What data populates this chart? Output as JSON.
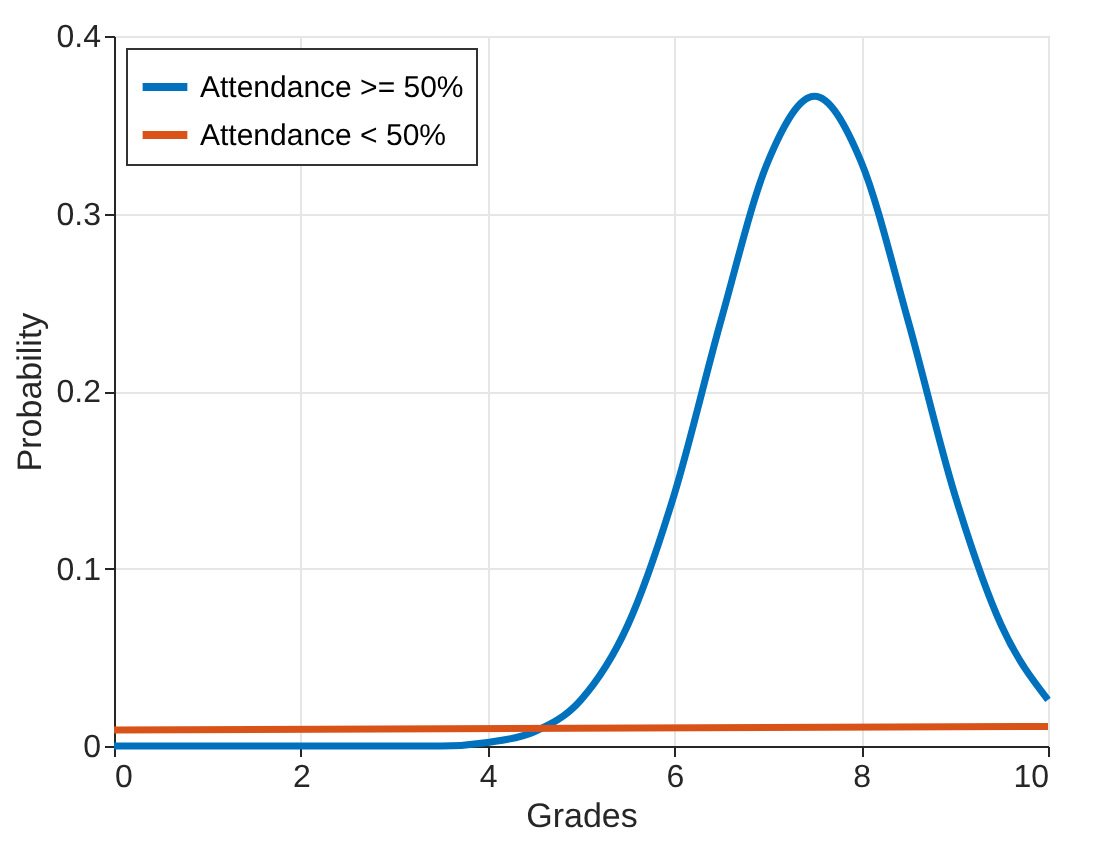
{
  "chart_data": {
    "type": "line",
    "xlabel": "Grades",
    "ylabel": "Probability",
    "xlim": [
      0,
      10
    ],
    "xticks": [
      0,
      2,
      4,
      6,
      8,
      10
    ],
    "ylim": [
      0,
      0.4
    ],
    "yticks": [
      0,
      0.1,
      0.2,
      0.3,
      0.4
    ],
    "grid": true,
    "legend": "top left",
    "line_style": "solid",
    "series": [
      {
        "name": "Attendance >= 50%",
        "color": "#0072bd",
        "x": [
          0,
          1,
          2,
          3,
          3.5,
          4,
          4.5,
          5,
          5.5,
          6,
          6.5,
          7,
          7.5,
          8,
          8.5,
          9,
          9.5,
          10
        ],
        "values": [
          0,
          0,
          0,
          0,
          0,
          0.002,
          0.008,
          0.026,
          0.068,
          0.142,
          0.24,
          0.329,
          0.366,
          0.329,
          0.24,
          0.142,
          0.068,
          0.026
        ]
      },
      {
        "name": "Attendance < 50%",
        "color": "#d95319",
        "x": [
          0,
          10
        ],
        "values": [
          0.009,
          0.011
        ]
      }
    ]
  }
}
